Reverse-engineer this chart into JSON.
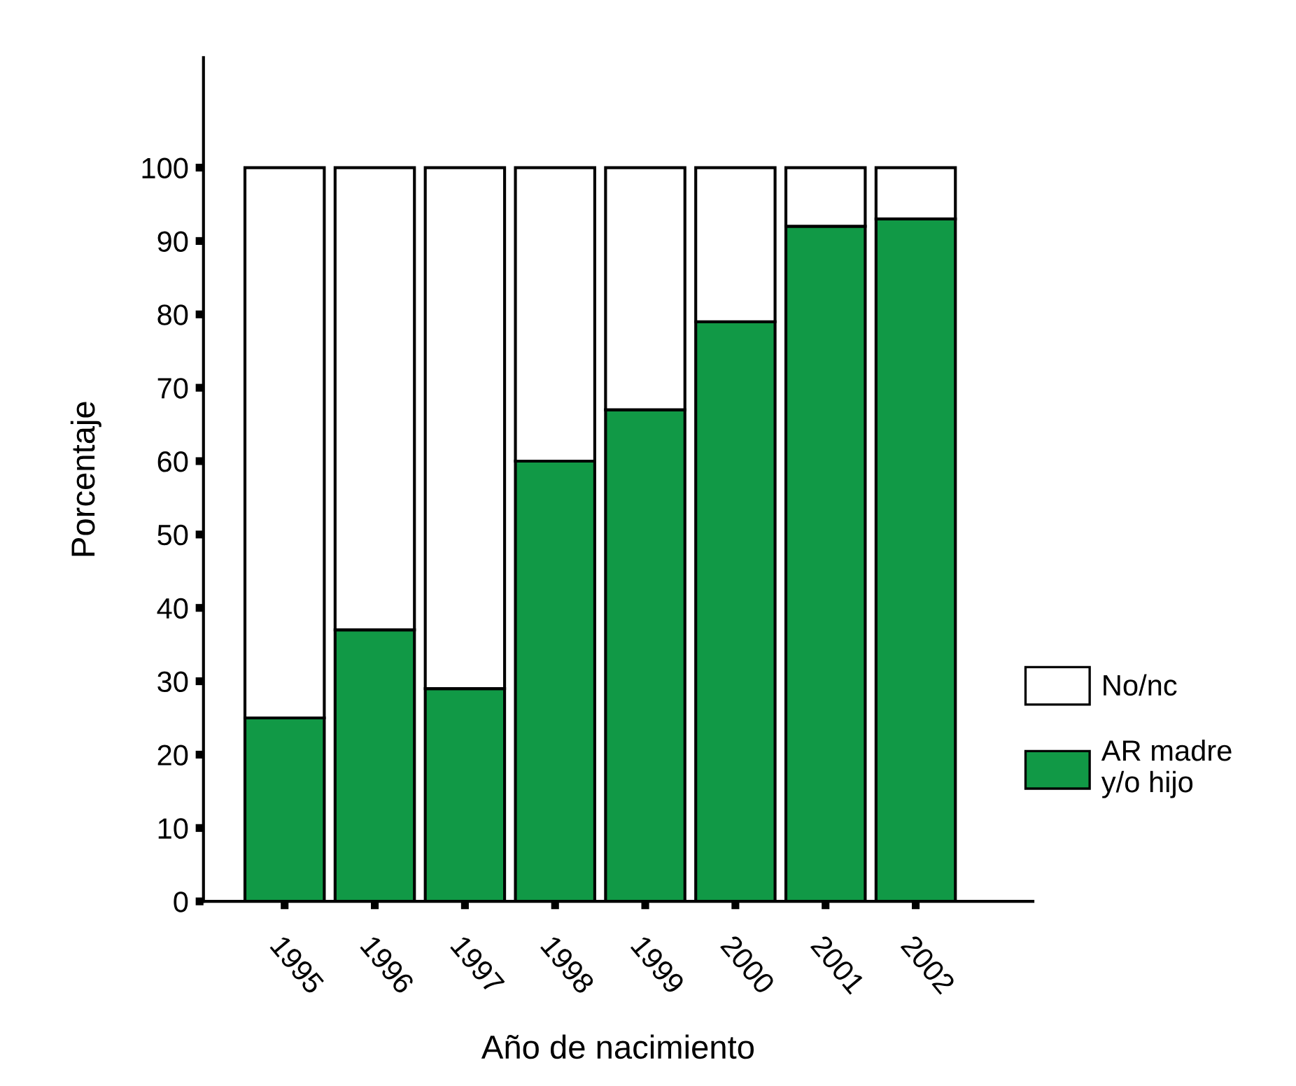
{
  "chart_data": {
    "type": "bar",
    "stacked": true,
    "xlabel": "Año de nacimiento",
    "ylabel": "Porcentaje",
    "categories": [
      "1995",
      "1996",
      "1997",
      "1998",
      "1999",
      "2000",
      "2001",
      "2002"
    ],
    "series": [
      {
        "name": "AR madre\ny/o hijo",
        "color": "#119946",
        "values": [
          25,
          37,
          29,
          60,
          67,
          79,
          92,
          93
        ]
      },
      {
        "name": "No/nc",
        "color": "#ffffff",
        "values": [
          75,
          63,
          71,
          40,
          33,
          21,
          8,
          7
        ]
      }
    ],
    "ylim": [
      0,
      115
    ],
    "yticks": [
      0,
      10,
      20,
      30,
      40,
      50,
      60,
      70,
      80,
      90,
      100
    ],
    "grid": false,
    "legend": "right"
  }
}
